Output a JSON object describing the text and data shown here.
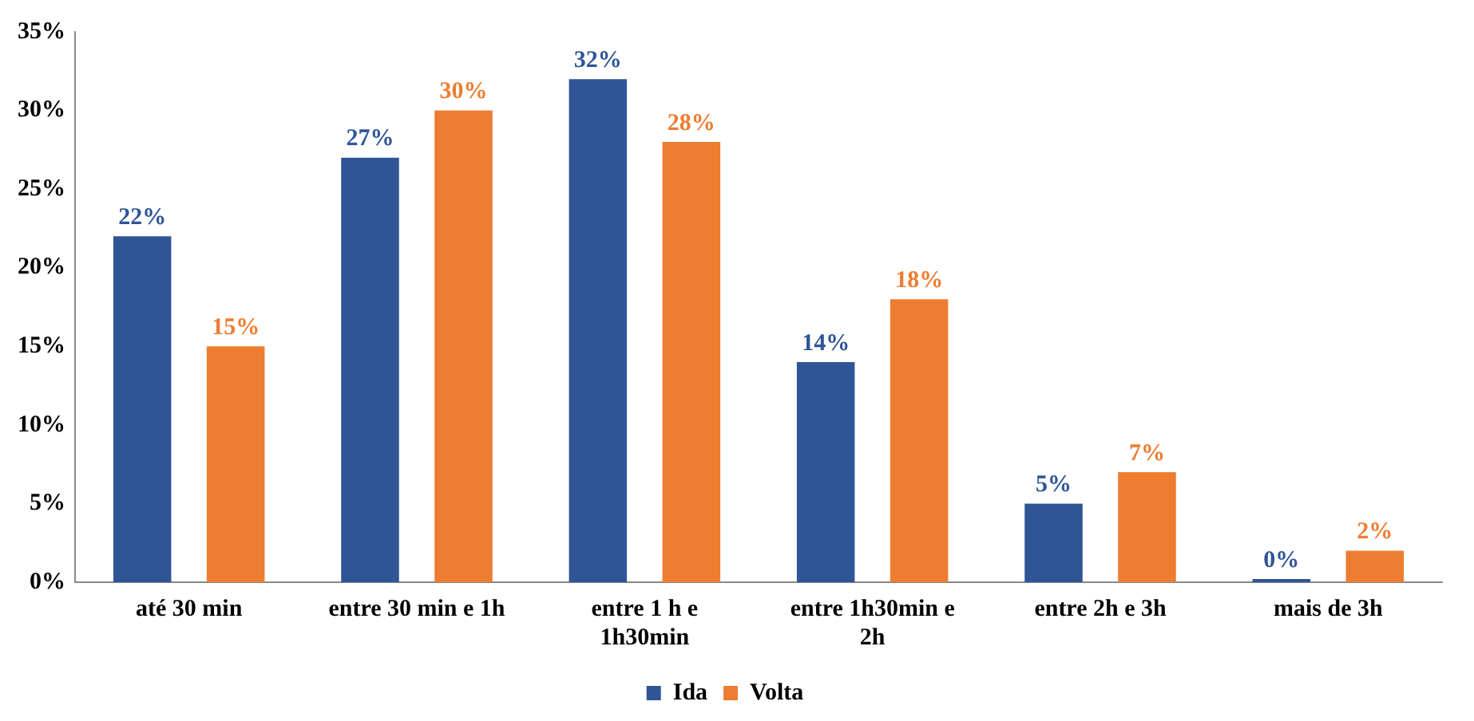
{
  "chart_data": {
    "type": "bar",
    "categories": [
      "até 30 min",
      "entre 30 min e 1h",
      "entre 1 h e 1h30min",
      "entre 1h30min e 2h",
      "entre 2h e 3h",
      "mais de 3h"
    ],
    "series": [
      {
        "name": "Ida",
        "color": "#2f5597",
        "values": [
          22,
          27,
          32,
          14,
          5,
          0
        ],
        "value_labels": [
          "22%",
          "27%",
          "32%",
          "14%",
          "5%",
          "0%"
        ]
      },
      {
        "name": "Volta",
        "color": "#ed7d31",
        "values": [
          15,
          30,
          28,
          18,
          7,
          2
        ],
        "value_labels": [
          "15%",
          "30%",
          "28%",
          "18%",
          "7%",
          "2%"
        ]
      }
    ],
    "ylim": [
      0,
      35
    ],
    "yticks": [
      {
        "value": 0,
        "label": "0%"
      },
      {
        "value": 5,
        "label": "5%"
      },
      {
        "value": 10,
        "label": "10%"
      },
      {
        "value": 15,
        "label": "15%"
      },
      {
        "value": 20,
        "label": "20%"
      },
      {
        "value": 25,
        "label": "25%"
      },
      {
        "value": 30,
        "label": "30%"
      },
      {
        "value": 35,
        "label": "35%"
      }
    ],
    "grid": false,
    "legend": "bottom"
  }
}
